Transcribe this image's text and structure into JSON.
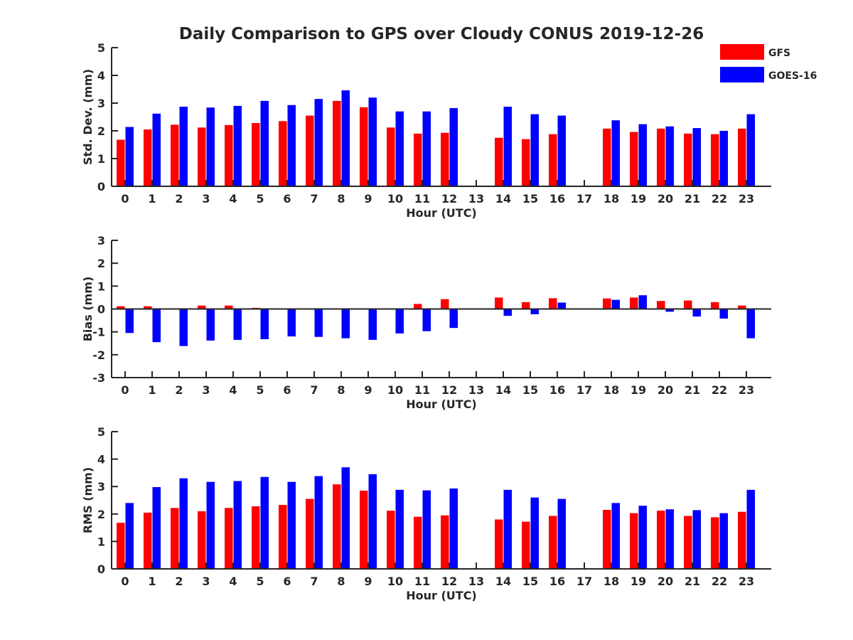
{
  "chart_data": {
    "title": "Daily Comparison to GPS over Cloudy CONUS 2019-12-26",
    "legend": {
      "placement": "top-right",
      "entries": [
        {
          "name": "GFS",
          "color": "#ff0000"
        },
        {
          "name": "GOES-16",
          "color": "#0000ff"
        }
      ]
    },
    "panels": [
      {
        "type": "bar",
        "ylabel": "Std. Dev. (mm)",
        "xlabel": "Hour (UTC)",
        "ylim": [
          0,
          5
        ],
        "yticks": [
          "0",
          "1",
          "2",
          "3",
          "4",
          "5"
        ],
        "categories": [
          "0",
          "1",
          "2",
          "3",
          "4",
          "5",
          "6",
          "7",
          "8",
          "9",
          "10",
          "11",
          "12",
          "13",
          "14",
          "15",
          "16",
          "17",
          "18",
          "19",
          "20",
          "21",
          "22",
          "23"
        ],
        "series": [
          {
            "name": "GFS",
            "values": [
              1.68,
              2.05,
              2.22,
              2.12,
              2.21,
              2.28,
              2.35,
              2.55,
              3.08,
              2.85,
              2.12,
              1.9,
              1.93,
              null,
              1.75,
              1.7,
              1.88,
              null,
              2.08,
              1.96,
              2.08,
              1.9,
              1.88,
              2.08
            ]
          },
          {
            "name": "GOES-16",
            "values": [
              2.14,
              2.62,
              2.87,
              2.84,
              2.9,
              3.08,
              2.93,
              3.15,
              3.46,
              3.2,
              2.7,
              2.7,
              2.82,
              null,
              2.87,
              2.6,
              2.55,
              null,
              2.38,
              2.24,
              2.16,
              2.1,
              2.0,
              2.6
            ]
          }
        ]
      },
      {
        "type": "bar",
        "ylabel": "Bias (mm)",
        "xlabel": "Hour (UTC)",
        "ylim": [
          -3,
          3
        ],
        "yticks": [
          "-3",
          "-2",
          "-1",
          "0",
          "1",
          "2",
          "3"
        ],
        "categories": [
          "0",
          "1",
          "2",
          "3",
          "4",
          "5",
          "6",
          "7",
          "8",
          "9",
          "10",
          "11",
          "12",
          "13",
          "14",
          "15",
          "16",
          "17",
          "18",
          "19",
          "20",
          "21",
          "22",
          "23"
        ],
        "series": [
          {
            "name": "GFS",
            "values": [
              0.12,
              0.12,
              0.0,
              0.15,
              0.15,
              0.05,
              0.03,
              0.03,
              0.0,
              0.0,
              0.0,
              0.22,
              0.43,
              null,
              0.5,
              0.3,
              0.47,
              null,
              0.46,
              0.5,
              0.35,
              0.37,
              0.3,
              0.15
            ]
          },
          {
            "name": "GOES-16",
            "values": [
              -1.05,
              -1.45,
              -1.62,
              -1.38,
              -1.35,
              -1.32,
              -1.2,
              -1.22,
              -1.28,
              -1.35,
              -1.07,
              -0.97,
              -0.83,
              null,
              -0.3,
              -0.23,
              0.28,
              null,
              0.4,
              0.6,
              -0.12,
              -0.33,
              -0.42,
              -1.28
            ]
          }
        ]
      },
      {
        "type": "bar",
        "ylabel": "RMS (mm)",
        "xlabel": "Hour (UTC)",
        "ylim": [
          0,
          5
        ],
        "yticks": [
          "0",
          "1",
          "2",
          "3",
          "4",
          "5"
        ],
        "categories": [
          "0",
          "1",
          "2",
          "3",
          "4",
          "5",
          "6",
          "7",
          "8",
          "9",
          "10",
          "11",
          "12",
          "13",
          "14",
          "15",
          "16",
          "17",
          "18",
          "19",
          "20",
          "21",
          "22",
          "23"
        ],
        "series": [
          {
            "name": "GFS",
            "values": [
              1.68,
              2.05,
              2.22,
              2.1,
              2.22,
              2.28,
              2.33,
              2.55,
              3.08,
              2.85,
              2.12,
              1.9,
              1.95,
              null,
              1.8,
              1.72,
              1.93,
              null,
              2.15,
              2.03,
              2.12,
              1.93,
              1.88,
              2.08
            ]
          },
          {
            "name": "GOES-16",
            "values": [
              2.4,
              2.98,
              3.3,
              3.17,
              3.2,
              3.35,
              3.17,
              3.38,
              3.7,
              3.45,
              2.88,
              2.86,
              2.93,
              null,
              2.88,
              2.6,
              2.55,
              null,
              2.4,
              2.3,
              2.17,
              2.14,
              2.03,
              2.88
            ]
          }
        ]
      }
    ]
  }
}
